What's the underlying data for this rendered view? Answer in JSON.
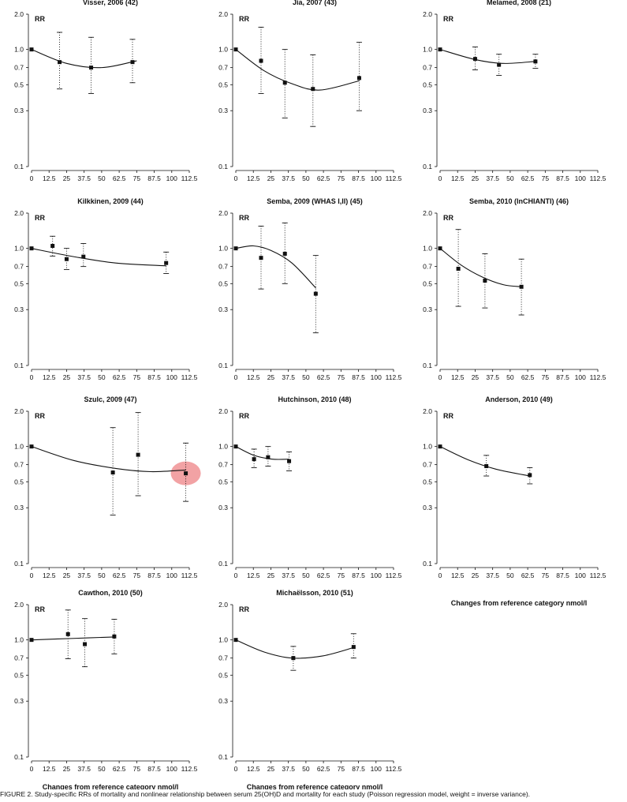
{
  "chart_data": [
    {
      "type": "scatter",
      "title": "Visser, 2006  (42)",
      "ylabel": "RR",
      "xlim": [
        0,
        112.5
      ],
      "ylim": [
        0.1,
        2.0
      ],
      "yscale": "log",
      "x": [
        0,
        20,
        42.5,
        72
      ],
      "y": [
        1.0,
        0.78,
        0.7,
        0.78
      ],
      "lower": [
        1.0,
        0.46,
        0.42,
        0.52
      ],
      "upper": [
        1.0,
        1.4,
        1.27,
        1.22
      ],
      "fit_x": [
        0,
        25,
        50,
        75
      ],
      "fit_y": [
        1.0,
        0.76,
        0.7,
        0.8
      ]
    },
    {
      "type": "scatter",
      "title": "Jia, 2007  (43)",
      "ylabel": "RR",
      "xlim": [
        0,
        112.5
      ],
      "ylim": [
        0.1,
        2.0
      ],
      "yscale": "log",
      "x": [
        0,
        18,
        35,
        55,
        88
      ],
      "y": [
        1.0,
        0.8,
        0.52,
        0.46,
        0.57
      ],
      "lower": [
        1.0,
        0.42,
        0.26,
        0.22,
        0.3
      ],
      "upper": [
        1.0,
        1.55,
        1.0,
        0.9,
        1.15
      ],
      "fit_x": [
        0,
        20,
        40,
        60,
        88
      ],
      "fit_y": [
        1.0,
        0.66,
        0.51,
        0.45,
        0.54
      ]
    },
    {
      "type": "scatter",
      "title": "Melamed, 2008  (21)",
      "ylabel": "RR",
      "xlim": [
        0,
        112.5
      ],
      "ylim": [
        0.1,
        2.0
      ],
      "yscale": "log",
      "x": [
        0,
        25,
        42,
        68
      ],
      "y": [
        1.0,
        0.83,
        0.74,
        0.79
      ],
      "lower": [
        1.0,
        0.67,
        0.6,
        0.69
      ],
      "upper": [
        1.0,
        1.05,
        0.91,
        0.91
      ],
      "fit_x": [
        0,
        25,
        45,
        68
      ],
      "fit_y": [
        1.0,
        0.82,
        0.76,
        0.79
      ]
    },
    {
      "type": "scatter",
      "title": "Kilkkinen, 2009  (44)",
      "ylabel": "RR",
      "xlim": [
        0,
        112.5
      ],
      "ylim": [
        0.1,
        2.0
      ],
      "yscale": "log",
      "x": [
        0,
        15,
        25,
        37,
        96
      ],
      "y": [
        1.0,
        1.05,
        0.81,
        0.85,
        0.75
      ],
      "lower": [
        1.0,
        0.86,
        0.66,
        0.7,
        0.61
      ],
      "upper": [
        1.0,
        1.27,
        1.0,
        1.1,
        0.93
      ],
      "fit_x": [
        0,
        30,
        60,
        96
      ],
      "fit_y": [
        1.0,
        0.85,
        0.75,
        0.71
      ]
    },
    {
      "type": "scatter",
      "title": "Semba, 2009 (WHAS I,II)  (45)",
      "ylabel": "RR",
      "xlim": [
        0,
        112.5
      ],
      "ylim": [
        0.1,
        2.0
      ],
      "yscale": "log",
      "x": [
        0,
        18,
        35,
        57
      ],
      "y": [
        1.0,
        0.83,
        0.9,
        0.41
      ],
      "lower": [
        1.0,
        0.45,
        0.5,
        0.19
      ],
      "upper": [
        1.0,
        1.55,
        1.65,
        0.87
      ],
      "fit_x": [
        0,
        12.5,
        25,
        40,
        57
      ],
      "fit_y": [
        1.0,
        1.05,
        0.96,
        0.75,
        0.46
      ]
    },
    {
      "type": "scatter",
      "title": "Semba, 2010 (InCHIANTI)  (46)",
      "ylabel": "RR",
      "xlim": [
        0,
        112.5
      ],
      "ylim": [
        0.1,
        2.0
      ],
      "yscale": "log",
      "x": [
        0,
        13,
        32,
        58
      ],
      "y": [
        1.0,
        0.67,
        0.53,
        0.47
      ],
      "lower": [
        1.0,
        0.32,
        0.31,
        0.27
      ],
      "upper": [
        1.0,
        1.45,
        0.9,
        0.81
      ],
      "fit_x": [
        0,
        15,
        30,
        45,
        58
      ],
      "fit_y": [
        1.0,
        0.72,
        0.57,
        0.49,
        0.47
      ]
    },
    {
      "type": "scatter",
      "title": "Szulc, 2009  (47)",
      "ylabel": "RR",
      "xlim": [
        0,
        112.5
      ],
      "ylim": [
        0.1,
        2.0
      ],
      "yscale": "log",
      "x": [
        0,
        58,
        76,
        110
      ],
      "y": [
        1.0,
        0.6,
        0.85,
        0.59
      ],
      "lower": [
        1.0,
        0.26,
        0.38,
        0.34
      ],
      "upper": [
        1.0,
        1.45,
        1.95,
        1.07
      ],
      "fit_x": [
        0,
        30,
        60,
        85,
        110
      ],
      "fit_y": [
        1.0,
        0.76,
        0.65,
        0.61,
        0.63
      ]
    },
    {
      "type": "scatter",
      "title": "Hutchinson, 2010  (48)",
      "ylabel": "RR",
      "xlim": [
        0,
        112.5
      ],
      "ylim": [
        0.1,
        2.0
      ],
      "yscale": "log",
      "x": [
        0,
        13,
        23,
        38
      ],
      "y": [
        1.0,
        0.78,
        0.81,
        0.75
      ],
      "lower": [
        1.0,
        0.66,
        0.68,
        0.62
      ],
      "upper": [
        1.0,
        0.95,
        1.0,
        0.9
      ],
      "fit_x": [
        0,
        13,
        26,
        38
      ],
      "fit_y": [
        1.0,
        0.84,
        0.78,
        0.78
      ]
    },
    {
      "type": "scatter",
      "title": "Anderson, 2010  (49)",
      "ylabel": "RR",
      "xlim": [
        0,
        112.5
      ],
      "ylim": [
        0.1,
        2.0
      ],
      "yscale": "log",
      "x": [
        0,
        33,
        64
      ],
      "y": [
        1.0,
        0.68,
        0.57
      ],
      "lower": [
        1.0,
        0.56,
        0.48
      ],
      "upper": [
        1.0,
        0.84,
        0.66
      ],
      "fit_x": [
        0,
        20,
        40,
        64
      ],
      "fit_y": [
        1.0,
        0.77,
        0.64,
        0.56
      ]
    },
    {
      "type": "scatter",
      "title": "Cawthon, 2010  (50)",
      "ylabel": "RR",
      "xlim": [
        0,
        112.5
      ],
      "ylim": [
        0.1,
        2.0
      ],
      "yscale": "log",
      "x": [
        0,
        26,
        38,
        59
      ],
      "y": [
        1.0,
        1.12,
        0.92,
        1.07
      ],
      "lower": [
        1.0,
        0.69,
        0.59,
        0.76
      ],
      "upper": [
        1.0,
        1.8,
        1.52,
        1.5
      ],
      "fit_x": [
        0,
        30,
        59
      ],
      "fit_y": [
        1.0,
        1.03,
        1.06
      ]
    },
    {
      "type": "scatter",
      "title": "Michaëlsson, 2010  (51)",
      "ylabel": "RR",
      "xlim": [
        0,
        112.5
      ],
      "ylim": [
        0.1,
        2.0
      ],
      "yscale": "log",
      "x": [
        0,
        41,
        84
      ],
      "y": [
        1.0,
        0.7,
        0.87
      ],
      "lower": [
        1.0,
        0.55,
        0.7
      ],
      "upper": [
        1.0,
        0.88,
        1.13
      ],
      "fit_x": [
        0,
        20,
        40,
        62,
        84
      ],
      "fit_y": [
        1.0,
        0.79,
        0.7,
        0.73,
        0.86
      ]
    }
  ],
  "axes": {
    "y_ticks": [
      0.1,
      0.3,
      0.5,
      0.7,
      1.0,
      2.0
    ],
    "y_tick_labels": [
      "0.1",
      "0.3",
      "0.5",
      "0.7",
      "1.0",
      "2.0"
    ],
    "x_ticks": [
      0,
      12.5,
      25,
      37.5,
      50,
      62.5,
      75,
      87.5,
      100,
      112.5
    ],
    "x_tick_labels": [
      "0",
      "12.5",
      "25",
      "37.5",
      "50",
      "62.5",
      "75",
      "87.5",
      "100",
      "112.5"
    ],
    "rr_label": "RR"
  },
  "x_axis_label": "Changes from reference category nmol/l",
  "caption": "FIGURE 2. Study-specific RRs of mortality and nonlinear relationship between serum 25(OH)D and mortality for each study (Poisson regression model, weight = inverse variance).",
  "colors": {
    "ink": "#111111",
    "highlight": "#e8555a"
  }
}
